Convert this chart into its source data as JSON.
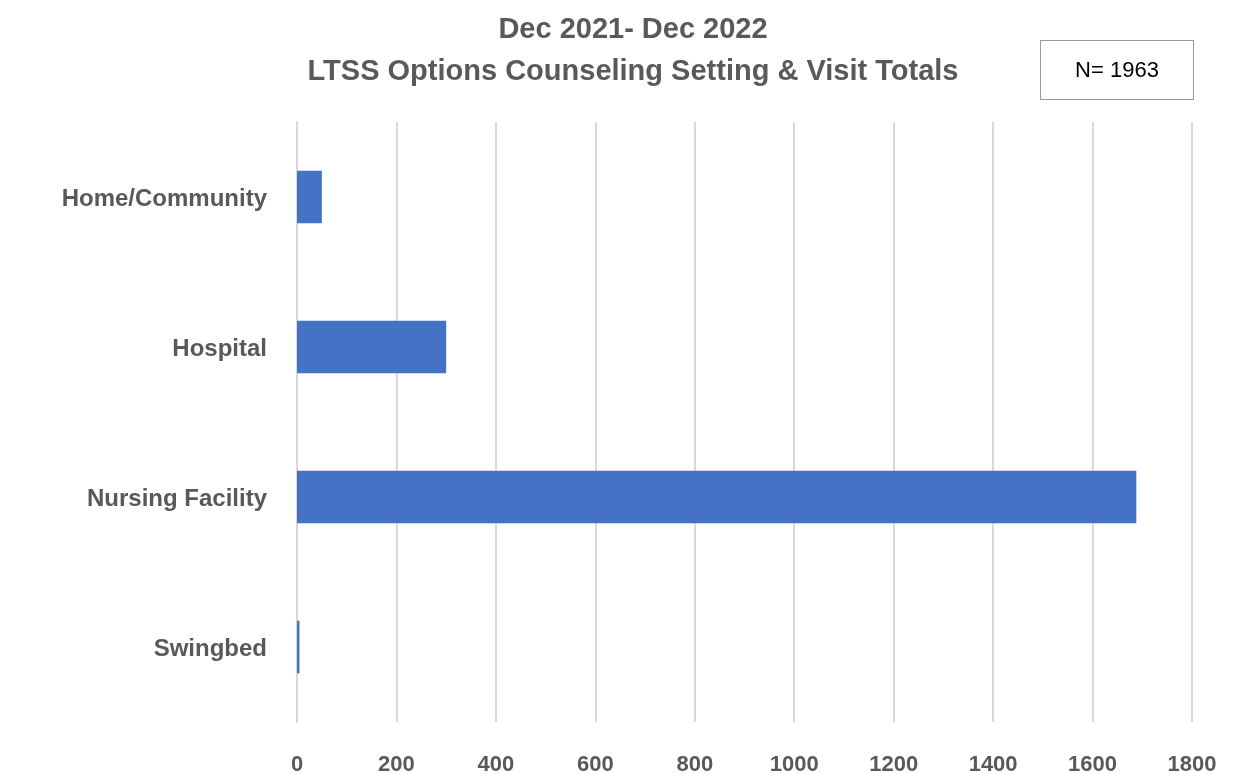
{
  "chart_data": {
    "type": "bar",
    "orientation": "horizontal",
    "title": "Dec 2021- Dec 2022\nLTSS Options Counseling Setting & Visit Totals",
    "annotations": [
      "N= 1963"
    ],
    "categories": [
      "Home/Community",
      "Hospital",
      "Nursing Facility",
      "Swingbed"
    ],
    "values": [
      50,
      300,
      1688,
      5
    ],
    "color": "#4472c4",
    "xlim": [
      0,
      1800
    ],
    "xticks": [
      0,
      200,
      400,
      600,
      800,
      1000,
      1200,
      1400,
      1600,
      1800
    ],
    "grid": "x"
  }
}
